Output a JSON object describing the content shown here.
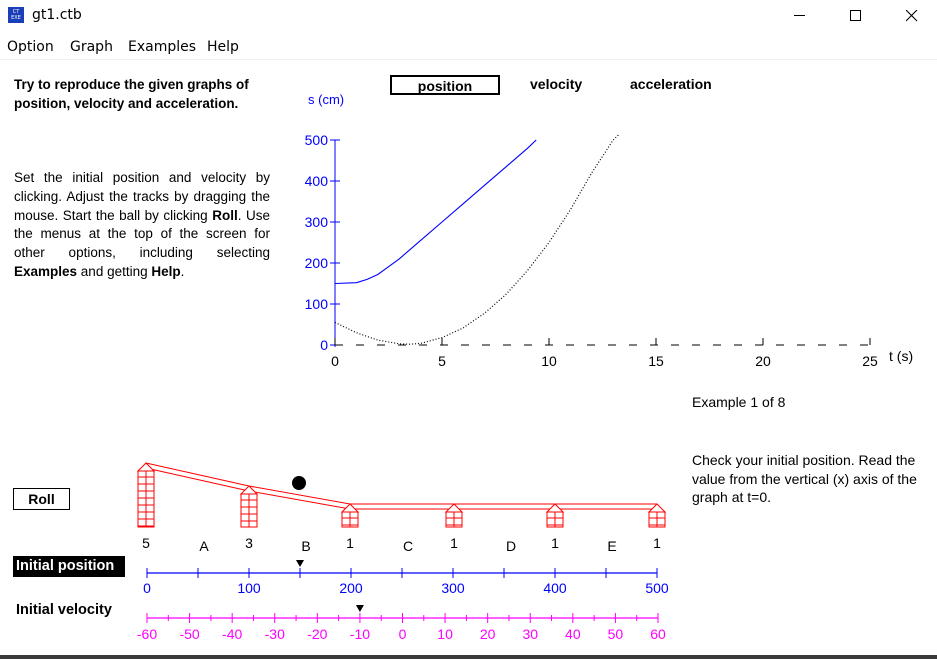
{
  "window": {
    "title": "gt1.ctb",
    "icon": "app-icon"
  },
  "menu": [
    "Option",
    "Graph",
    "Examples",
    "Help"
  ],
  "intro": "Try to reproduce the given graphs of position, velocity and acceleration.",
  "instructions": {
    "p1": "Set the initial position and velocity by clicking.  Adjust the tracks by dragging the mouse.  Start the ball by clicking ",
    "roll": "Roll",
    "p2": ".  Use the menus at the top of the screen for other options, including selecting ",
    "examples": "Examples",
    "p3": " and getting ",
    "help": "Help",
    "p4": "."
  },
  "tabs": {
    "position": "position",
    "velocity": "velocity",
    "acceleration": "acceleration",
    "active": "position"
  },
  "graph": {
    "ylabel": "s (cm)",
    "xlabel": "t (s)",
    "xticks": [
      "0",
      "5",
      "10",
      "15",
      "20",
      "25"
    ],
    "yticks": [
      "0",
      "100",
      "200",
      "300",
      "400",
      "500"
    ],
    "xrange": [
      0,
      25
    ],
    "yrange": [
      0,
      500
    ],
    "axis_color": "#0000ff",
    "target_color": "#000000",
    "student_color": "#0000ff"
  },
  "chart_data": {
    "type": "line",
    "xlabel": "t (s)",
    "ylabel": "s (cm)",
    "xlim": [
      0,
      25
    ],
    "ylim": [
      0,
      500
    ],
    "series": [
      {
        "style": "solid-blue",
        "x": [
          0,
          1,
          1.5,
          2,
          3,
          4,
          5,
          6,
          7,
          8,
          9,
          9.4
        ],
        "y": [
          150,
          152,
          160,
          172,
          210,
          255,
          300,
          345,
          390,
          435,
          480,
          500
        ]
      },
      {
        "style": "dotted-black",
        "x": [
          0,
          1,
          2,
          3,
          3.5,
          4,
          5,
          6,
          7,
          8,
          9,
          10,
          11,
          12,
          13,
          13.3
        ],
        "y": [
          55,
          30,
          12,
          3,
          2,
          4,
          18,
          42,
          78,
          124,
          182,
          250,
          330,
          420,
          500,
          515
        ]
      }
    ]
  },
  "example_counter": "Example 1 of 8",
  "hint": "Check your initial position.  Read the value from the vertical (x) axis of the graph at t=0.",
  "roll_label": "Roll",
  "track": {
    "post_labels": [
      "5",
      "3",
      "1",
      "1",
      "1",
      "1"
    ],
    "segment_labels": [
      "A",
      "B",
      "C",
      "D",
      "E"
    ],
    "color": "#ff0000",
    "ball_color": "#000000"
  },
  "initial_position": {
    "label": "Initial position",
    "ticks": [
      "0",
      "100",
      "200",
      "300",
      "400",
      "500"
    ],
    "value": 150,
    "range": [
      0,
      500
    ],
    "color": "#0000ff"
  },
  "initial_velocity": {
    "label": "Initial velocity",
    "ticks": [
      "-60",
      "-50",
      "-40",
      "-30",
      "-20",
      "-10",
      "0",
      "10",
      "20",
      "30",
      "40",
      "50",
      "60"
    ],
    "value": -10,
    "range": [
      -60,
      60
    ],
    "color": "#ff00ff"
  }
}
